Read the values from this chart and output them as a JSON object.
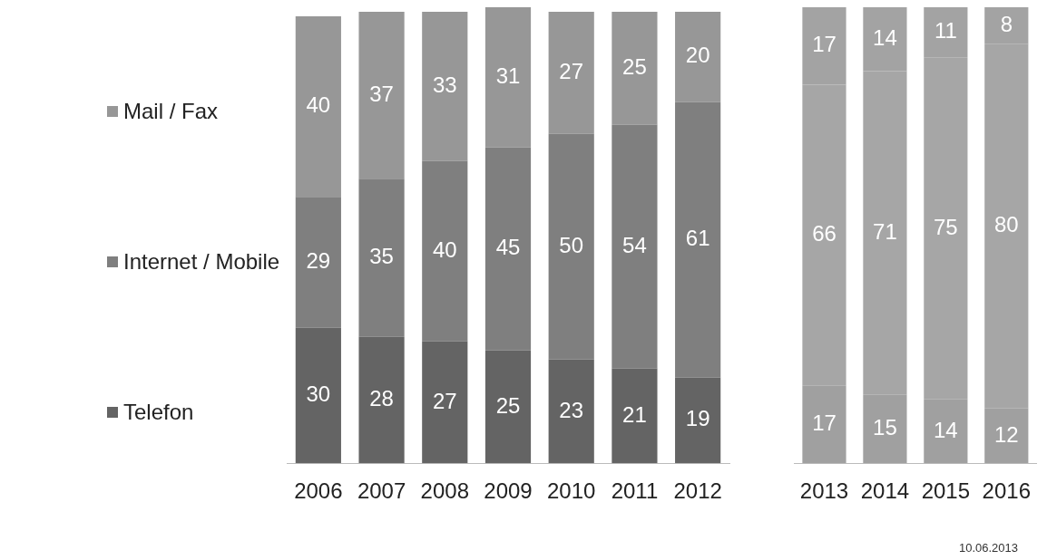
{
  "chart_data": [
    {
      "type": "bar",
      "stacked": true,
      "categories": [
        "2006",
        "2007",
        "2008",
        "2009",
        "2010",
        "2011",
        "2012"
      ],
      "series": [
        {
          "name": "Telefon",
          "color": "#646464",
          "values": [
            30,
            28,
            27,
            25,
            23,
            21,
            19
          ]
        },
        {
          "name": "Internet / Mobile",
          "color": "#7f7f7f",
          "values": [
            29,
            35,
            40,
            45,
            50,
            54,
            61
          ]
        },
        {
          "name": "Mail / Fax",
          "color": "#979797",
          "values": [
            40,
            37,
            33,
            31,
            27,
            25,
            20
          ]
        }
      ],
      "data_labels": true,
      "legend": "left",
      "tick_labels": "x"
    },
    {
      "type": "bar",
      "stacked": true,
      "categories": [
        "2013",
        "2014",
        "2015",
        "2016"
      ],
      "series": [
        {
          "color": "#a0a0a0",
          "values": [
            17,
            15,
            14,
            12
          ]
        },
        {
          "color": "#a6a6a6",
          "values": [
            66,
            71,
            75,
            80
          ]
        },
        {
          "color": "#a3a3a3",
          "values": [
            17,
            14,
            11,
            8
          ]
        }
      ],
      "data_labels": true,
      "tick_labels": "x",
      "annotations": [
        "10.06.2013"
      ]
    }
  ]
}
